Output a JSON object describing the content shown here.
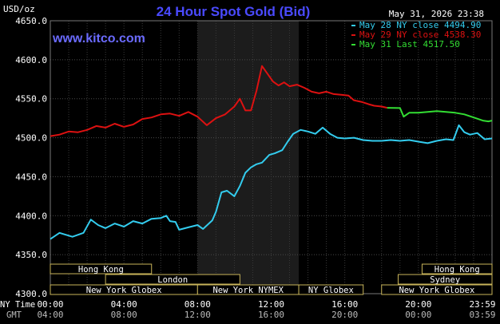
{
  "chart_data": {
    "type": "line",
    "title": "24 Hour Spot Gold (Bid)",
    "unit_label": "USD/oz",
    "timestamp": "May 31, 2026 23:38",
    "watermark": "www.kitco.com",
    "ylim": [
      4300,
      4650
    ],
    "yticks": [
      "4650.0",
      "4600.0",
      "4550.0",
      "4500.0",
      "4450.0",
      "4400.0",
      "4350.0",
      "4300.0"
    ],
    "xlim_hours": [
      0,
      24
    ],
    "xticks_ny": [
      "00:00",
      "04:00",
      "08:00",
      "12:00",
      "16:00",
      "20:00",
      "23:59"
    ],
    "xticks_gmt": [
      "04:00",
      "08:00",
      "12:00",
      "16:00",
      "20:00",
      "00:00",
      "03:59"
    ],
    "x_row_labels": [
      "NY Time",
      "GMT"
    ],
    "grid": true,
    "legend_position": "top-right",
    "colors": {
      "may28": "#33ccee",
      "may29": "#dd1111",
      "may31": "#33dd33"
    },
    "series": [
      {
        "name": "May 28 NY close 4494.90",
        "color": "#33ccee",
        "points": [
          [
            0,
            4370
          ],
          [
            0.5,
            4378
          ],
          [
            1.2,
            4373
          ],
          [
            1.8,
            4378
          ],
          [
            2.2,
            4395
          ],
          [
            2.6,
            4388
          ],
          [
            3,
            4384
          ],
          [
            3.5,
            4390
          ],
          [
            4,
            4386
          ],
          [
            4.5,
            4393
          ],
          [
            5,
            4390
          ],
          [
            5.5,
            4396
          ],
          [
            6,
            4397
          ],
          [
            6.3,
            4400
          ],
          [
            6.5,
            4393
          ],
          [
            6.8,
            4392
          ],
          [
            7,
            4382
          ],
          [
            7.5,
            4385
          ],
          [
            8,
            4388
          ],
          [
            8.3,
            4383
          ],
          [
            8.8,
            4394
          ],
          [
            9,
            4405
          ],
          [
            9.3,
            4430
          ],
          [
            9.6,
            4432
          ],
          [
            10,
            4425
          ],
          [
            10.3,
            4438
          ],
          [
            10.6,
            4455
          ],
          [
            10.9,
            4462
          ],
          [
            11.2,
            4466
          ],
          [
            11.5,
            4468
          ],
          [
            11.9,
            4478
          ],
          [
            12.2,
            4480
          ],
          [
            12.6,
            4484
          ],
          [
            12.9,
            4495
          ],
          [
            13.2,
            4505
          ],
          [
            13.6,
            4510
          ],
          [
            14,
            4508
          ],
          [
            14.4,
            4505
          ],
          [
            14.8,
            4513
          ],
          [
            15.2,
            4505
          ],
          [
            15.6,
            4500
          ],
          [
            16,
            4499
          ],
          [
            16.5,
            4500
          ],
          [
            17,
            4497
          ],
          [
            17.5,
            4496
          ],
          [
            18,
            4496
          ],
          [
            18.5,
            4497
          ],
          [
            19,
            4496
          ],
          [
            19.5,
            4497
          ],
          [
            20,
            4495
          ],
          [
            20.5,
            4493
          ],
          [
            21,
            4496
          ],
          [
            21.5,
            4498
          ],
          [
            21.9,
            4497
          ],
          [
            22.2,
            4516
          ],
          [
            22.5,
            4507
          ],
          [
            22.8,
            4504
          ],
          [
            23.2,
            4506
          ],
          [
            23.6,
            4498
          ],
          [
            24,
            4499
          ]
        ]
      },
      {
        "name": "May 29 NY close 4538.30",
        "color": "#dd1111",
        "points": [
          [
            0,
            4502
          ],
          [
            0.5,
            4504
          ],
          [
            1,
            4508
          ],
          [
            1.5,
            4507
          ],
          [
            2,
            4510
          ],
          [
            2.5,
            4515
          ],
          [
            3,
            4513
          ],
          [
            3.5,
            4518
          ],
          [
            4,
            4514
          ],
          [
            4.5,
            4517
          ],
          [
            5,
            4524
          ],
          [
            5.5,
            4526
          ],
          [
            6,
            4530
          ],
          [
            6.5,
            4531
          ],
          [
            7,
            4528
          ],
          [
            7.5,
            4533
          ],
          [
            8,
            4527
          ],
          [
            8.5,
            4516
          ],
          [
            9,
            4525
          ],
          [
            9.5,
            4530
          ],
          [
            10,
            4540
          ],
          [
            10.3,
            4550
          ],
          [
            10.6,
            4535
          ],
          [
            10.9,
            4535
          ],
          [
            11.2,
            4560
          ],
          [
            11.5,
            4592
          ],
          [
            11.8,
            4582
          ],
          [
            12.1,
            4572
          ],
          [
            12.4,
            4567
          ],
          [
            12.7,
            4571
          ],
          [
            13,
            4566
          ],
          [
            13.4,
            4568
          ],
          [
            13.8,
            4564
          ],
          [
            14.2,
            4559
          ],
          [
            14.6,
            4557
          ],
          [
            15,
            4559
          ],
          [
            15.4,
            4556
          ],
          [
            15.8,
            4555
          ],
          [
            16.2,
            4554
          ],
          [
            16.5,
            4548
          ],
          [
            16.9,
            4546
          ],
          [
            17.3,
            4543
          ],
          [
            17.6,
            4541
          ],
          [
            18,
            4540
          ],
          [
            18.3,
            4538.3
          ]
        ]
      },
      {
        "name": "May 31 Last 4517.50",
        "color": "#33dd33",
        "points": [
          [
            18.3,
            4538.3
          ],
          [
            19,
            4538
          ],
          [
            19.2,
            4527
          ],
          [
            19.5,
            4532
          ],
          [
            20,
            4532
          ],
          [
            20.5,
            4533
          ],
          [
            21,
            4534
          ],
          [
            21.5,
            4533
          ],
          [
            22,
            4532
          ],
          [
            22.5,
            4530
          ],
          [
            23,
            4526
          ],
          [
            23.5,
            4522
          ],
          [
            23.8,
            4521
          ],
          [
            24,
            4522
          ]
        ]
      }
    ],
    "highlight_band_hours": [
      8,
      13.5
    ],
    "sessions": [
      {
        "label": "Hong Kong",
        "start": 0,
        "end": 5.5,
        "row": 0
      },
      {
        "label": "Hong Kong",
        "start": 20.2,
        "end": 24,
        "row": 0
      },
      {
        "label": "London",
        "start": 3,
        "end": 10.3,
        "row": 1
      },
      {
        "label": "Sydney",
        "start": 18.9,
        "end": 24,
        "row": 1
      },
      {
        "label": "New York Globex",
        "start": 0,
        "end": 8,
        "row": 2
      },
      {
        "label": "New York NYMEX",
        "start": 8,
        "end": 13.5,
        "row": 2
      },
      {
        "label": "NY Globex",
        "start": 13.5,
        "end": 17,
        "row": 2
      },
      {
        "label": "New York Globex",
        "start": 18,
        "end": 24,
        "row": 2
      }
    ]
  }
}
